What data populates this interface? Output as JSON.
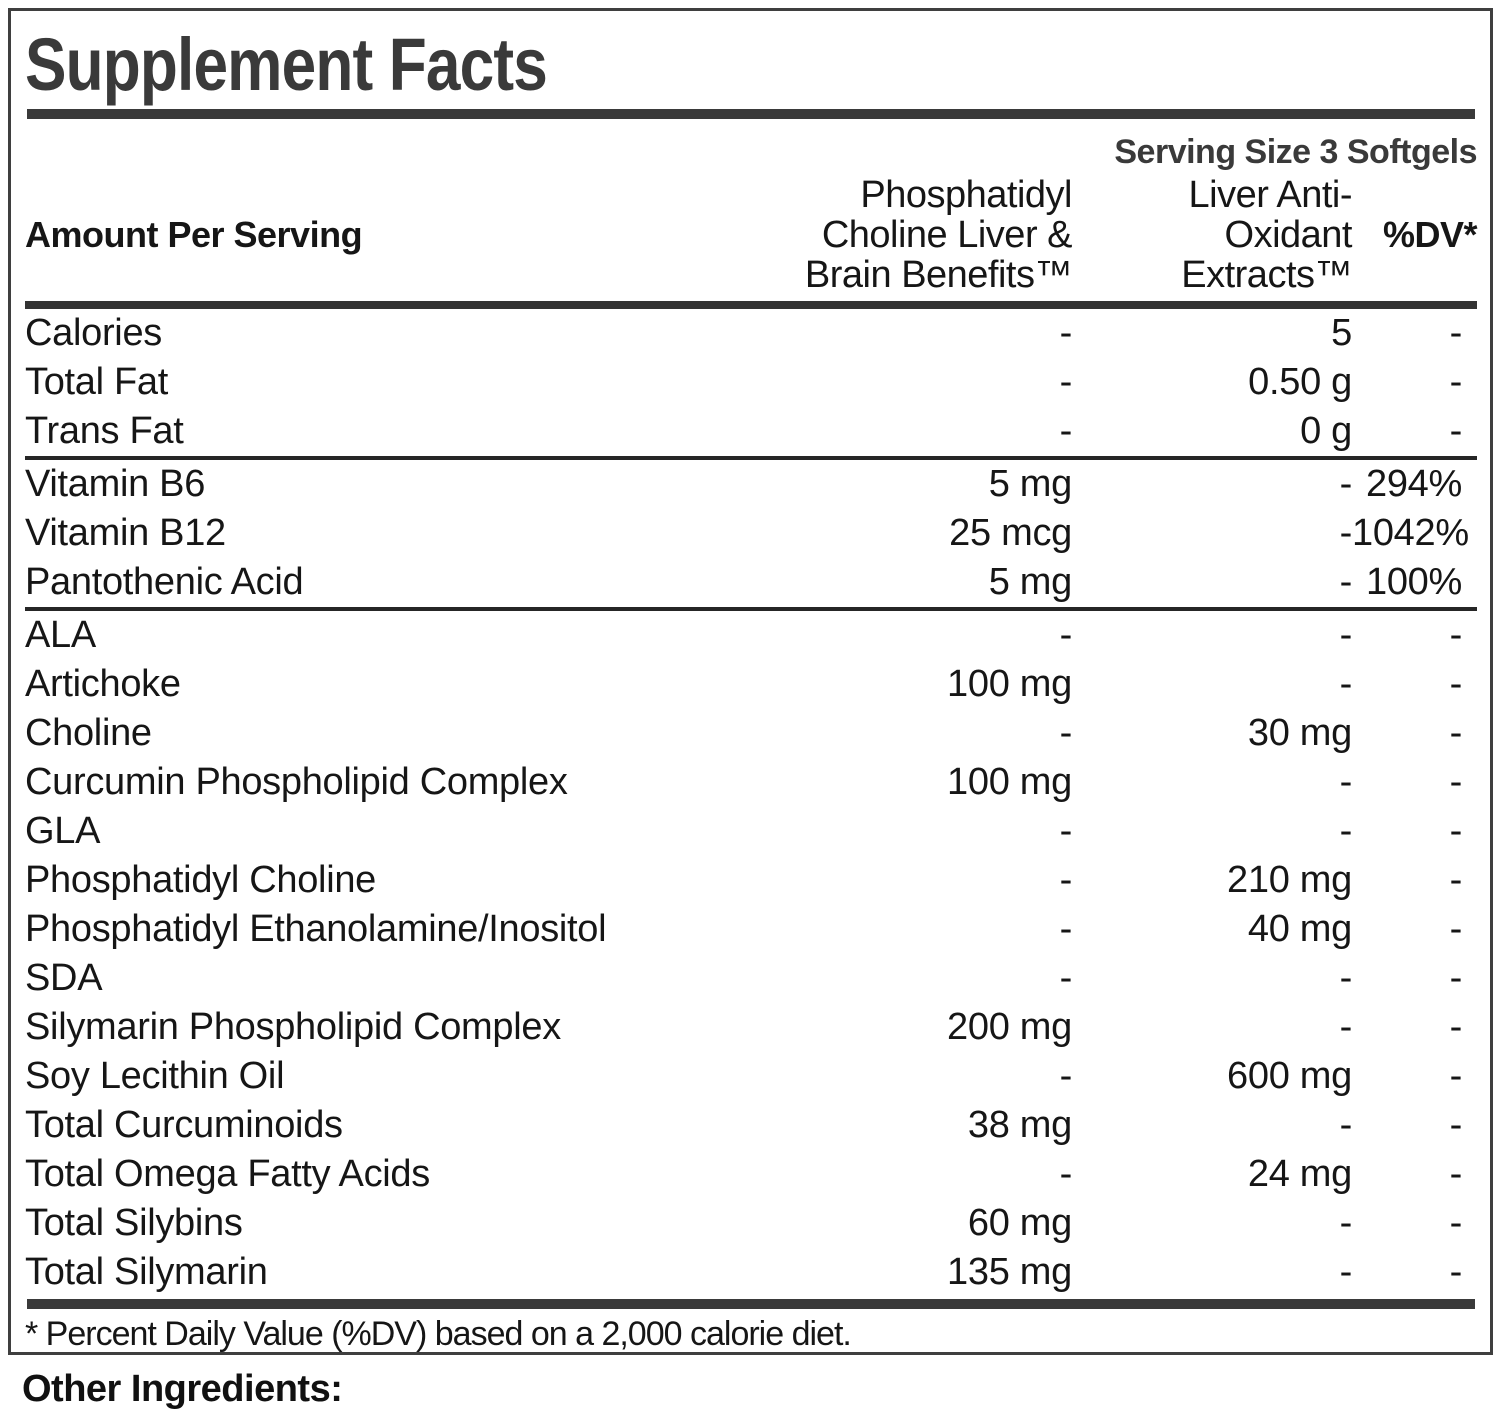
{
  "panel": {
    "title": "Supplement Facts",
    "serving_size": "Serving Size 3 Softgels",
    "columns": {
      "amount": "Amount Per Serving",
      "benefits": "Phosphatidyl\nCholine Liver &\nBrain Benefits™",
      "extracts": "Liver Anti-\nOxidant\nExtracts™",
      "dv": "%DV*"
    },
    "rows": [
      {
        "name": "Calories",
        "benefits": "-",
        "extracts": "5",
        "dv": "-"
      },
      {
        "name": "Total Fat",
        "benefits": "-",
        "extracts": "0.50 g",
        "dv": "-"
      },
      {
        "name": "Trans Fat",
        "benefits": "-",
        "extracts": "0 g",
        "dv": "-"
      },
      {
        "name": "Vitamin B6",
        "benefits": "5 mg",
        "extracts": "-",
        "dv": "294%"
      },
      {
        "name": "Vitamin B12",
        "benefits": "25 mcg",
        "extracts": "-",
        "dv": "1042%"
      },
      {
        "name": "Pantothenic Acid",
        "benefits": "5 mg",
        "extracts": "-",
        "dv": "100%"
      },
      {
        "name": "ALA",
        "benefits": "-",
        "extracts": "-",
        "dv": "-"
      },
      {
        "name": "Artichoke",
        "benefits": "100 mg",
        "extracts": "-",
        "dv": "-"
      },
      {
        "name": "Choline",
        "benefits": "-",
        "extracts": "30 mg",
        "dv": "-"
      },
      {
        "name": "Curcumin Phospholipid Complex",
        "benefits": "100 mg",
        "extracts": "-",
        "dv": "-"
      },
      {
        "name": "GLA",
        "benefits": "-",
        "extracts": "-",
        "dv": "-"
      },
      {
        "name": "Phosphatidyl Choline",
        "benefits": "-",
        "extracts": "210 mg",
        "dv": "-"
      },
      {
        "name": "Phosphatidyl Ethanolamine/Inositol",
        "benefits": "-",
        "extracts": "40 mg",
        "dv": "-"
      },
      {
        "name": "SDA",
        "benefits": "-",
        "extracts": "-",
        "dv": "-"
      },
      {
        "name": "Silymarin Phospholipid Complex",
        "benefits": "200 mg",
        "extracts": "-",
        "dv": "-"
      },
      {
        "name": "Soy Lecithin Oil",
        "benefits": "-",
        "extracts": "600 mg",
        "dv": "-"
      },
      {
        "name": "Total Curcuminoids",
        "benefits": "38 mg",
        "extracts": "-",
        "dv": "-"
      },
      {
        "name": "Total Omega Fatty Acids",
        "benefits": "-",
        "extracts": "24 mg",
        "dv": "-"
      },
      {
        "name": "Total Silybins",
        "benefits": "60 mg",
        "extracts": "-",
        "dv": "-"
      },
      {
        "name": "Total Silymarin",
        "benefits": "135 mg",
        "extracts": "-",
        "dv": "-"
      }
    ],
    "footnote": "* Percent Daily Value (%DV) based on a 2,000 calorie diet.",
    "other_ingredients": "Other Ingredients:",
    "colors": {
      "accent_dark": "#3a3a3a",
      "text": "#161616",
      "rule": "#262626"
    }
  }
}
